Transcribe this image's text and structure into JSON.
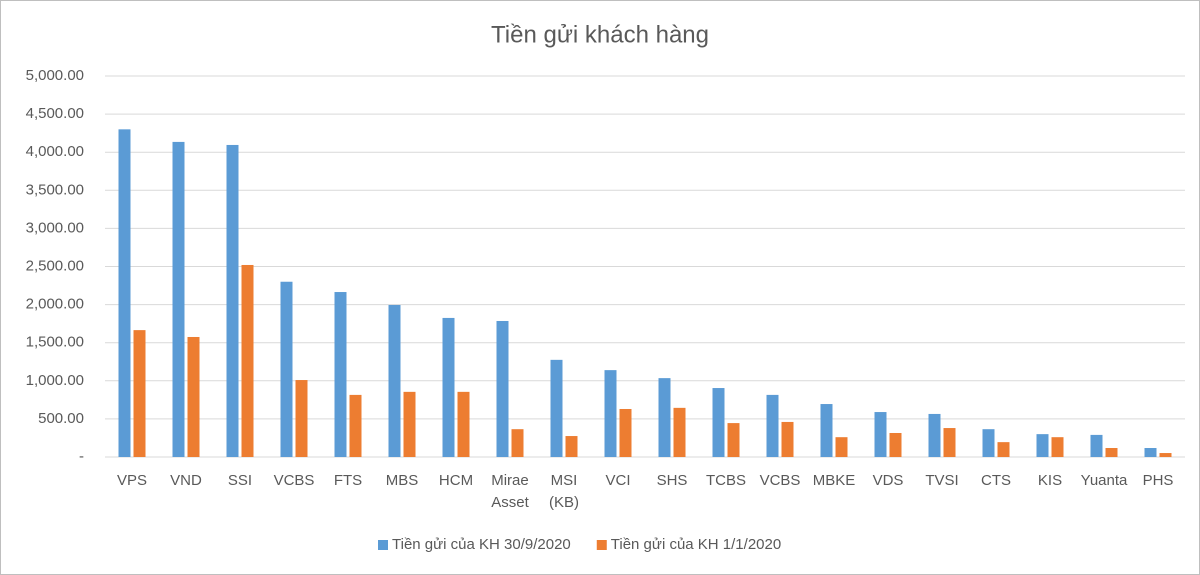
{
  "chart_data": {
    "type": "bar",
    "title": "Tiền gửi khách hàng",
    "categories": [
      "VPS",
      "VND",
      "SSI",
      "VCBS",
      "FTS",
      "MBS",
      "HCM",
      "Mirae Asset",
      "MSI (KB)",
      "VCI",
      "SHS",
      "TCBS",
      "VCBS",
      "MBKE",
      "VDS",
      "TVSI",
      "CTS",
      "KIS",
      "Yuanta",
      "PHS"
    ],
    "series": [
      {
        "name": "Tiền gửi của KH 30/9/2020",
        "color": "#5b9bd5",
        "values": [
          4300,
          4135,
          4095,
          2300,
          2165,
          1995,
          1825,
          1785,
          1275,
          1140,
          1035,
          905,
          815,
          695,
          590,
          565,
          365,
          300,
          290,
          118
        ]
      },
      {
        "name": "Tiền gửi của KH 1/1/2020",
        "color": "#ed7d31",
        "values": [
          1665,
          1575,
          2520,
          1010,
          815,
          855,
          855,
          365,
          275,
          630,
          645,
          445,
          460,
          260,
          315,
          380,
          195,
          260,
          118,
          52
        ]
      }
    ],
    "ylim": [
      0,
      5000
    ],
    "yticks": [
      {
        "value": 0,
        "label": "-"
      },
      {
        "value": 500,
        "label": "500.00"
      },
      {
        "value": 1000,
        "label": "1,000.00"
      },
      {
        "value": 1500,
        "label": "1,500.00"
      },
      {
        "value": 2000,
        "label": "2,000.00"
      },
      {
        "value": 2500,
        "label": "2,500.00"
      },
      {
        "value": 3000,
        "label": "3,000.00"
      },
      {
        "value": 3500,
        "label": "3,500.00"
      },
      {
        "value": 4000,
        "label": "4,000.00"
      },
      {
        "value": 4500,
        "label": "4,500.00"
      },
      {
        "value": 5000,
        "label": "5,000.00"
      }
    ],
    "grid": true,
    "legend": "bottom"
  }
}
